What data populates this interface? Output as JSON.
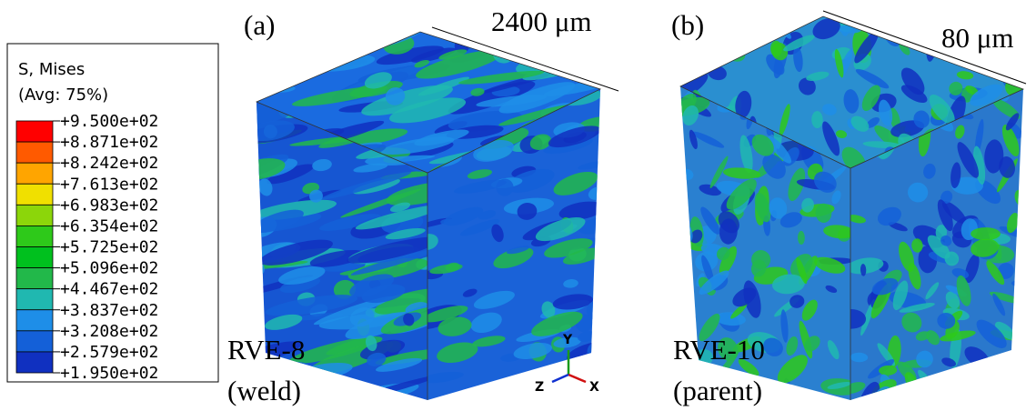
{
  "legend": {
    "title": "S, Mises",
    "subtitle": "(Avg: 75%)",
    "labels": [
      "+9.500e+02",
      "+8.871e+02",
      "+8.242e+02",
      "+7.613e+02",
      "+6.983e+02",
      "+6.354e+02",
      "+5.725e+02",
      "+5.096e+02",
      "+4.467e+02",
      "+3.837e+02",
      "+3.208e+02",
      "+2.579e+02",
      "+1.950e+02"
    ],
    "colors": [
      "#ff0000",
      "#ff5a00",
      "#ffa500",
      "#f0e000",
      "#8cd60a",
      "#2ec91a",
      "#00c01e",
      "#22b84a",
      "#20b8b0",
      "#1e8ee8",
      "#1460d8",
      "#1030c0"
    ]
  },
  "panels": [
    {
      "label": "(a)",
      "dimension": "2400 μm",
      "name": "RVE-8",
      "note": "(weld)"
    },
    {
      "label": "(b)",
      "dimension": "80 μm",
      "name": "RVE-10",
      "note": "(parent)"
    }
  ],
  "triad": {
    "y": "Y",
    "z": "Z",
    "x": "X"
  }
}
